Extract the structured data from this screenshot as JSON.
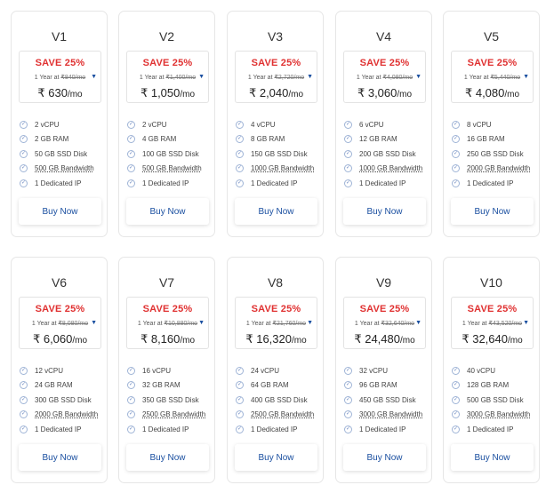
{
  "accent_color": "#e03131",
  "button_color": "#1a4fa0",
  "plans": [
    {
      "name": "V1",
      "save": "SAVE 25%",
      "term": "1 Year at",
      "old_price": "₹840/mo",
      "price": "₹ 630",
      "per": "/mo",
      "features": [
        "2 vCPU",
        "2 GB RAM",
        "50 GB SSD Disk",
        "500 GB Bandwidth",
        "1 Dedicated IP"
      ],
      "buy": "Buy Now"
    },
    {
      "name": "V2",
      "save": "SAVE 25%",
      "term": "1 Year at",
      "old_price": "₹1,400/mo",
      "price": "₹ 1,050",
      "per": "/mo",
      "features": [
        "2 vCPU",
        "4 GB RAM",
        "100 GB SSD Disk",
        "500 GB Bandwidth",
        "1 Dedicated IP"
      ],
      "buy": "Buy Now"
    },
    {
      "name": "V3",
      "save": "SAVE 25%",
      "term": "1 Year at",
      "old_price": "₹2,720/mo",
      "price": "₹ 2,040",
      "per": "/mo",
      "features": [
        "4 vCPU",
        "8 GB RAM",
        "150 GB SSD Disk",
        "1000 GB Bandwidth",
        "1 Dedicated IP"
      ],
      "buy": "Buy Now"
    },
    {
      "name": "V4",
      "save": "SAVE 25%",
      "term": "1 Year at",
      "old_price": "₹4,080/mo",
      "price": "₹ 3,060",
      "per": "/mo",
      "features": [
        "6 vCPU",
        "12 GB RAM",
        "200 GB SSD Disk",
        "1000 GB Bandwidth",
        "1 Dedicated IP"
      ],
      "buy": "Buy Now"
    },
    {
      "name": "V5",
      "save": "SAVE 25%",
      "term": "1 Year at",
      "old_price": "₹5,440/mo",
      "price": "₹ 4,080",
      "per": "/mo",
      "features": [
        "8 vCPU",
        "16 GB RAM",
        "250 GB SSD Disk",
        "2000 GB Bandwidth",
        "1 Dedicated IP"
      ],
      "buy": "Buy Now"
    },
    {
      "name": "V6",
      "save": "SAVE 25%",
      "term": "1 Year at",
      "old_price": "₹8,080/mo",
      "price": "₹ 6,060",
      "per": "/mo",
      "features": [
        "12 vCPU",
        "24 GB RAM",
        "300 GB SSD Disk",
        "2000 GB Bandwidth",
        "1 Dedicated IP"
      ],
      "buy": "Buy Now"
    },
    {
      "name": "V7",
      "save": "SAVE 25%",
      "term": "1 Year at",
      "old_price": "₹10,880/mo",
      "price": "₹ 8,160",
      "per": "/mo",
      "features": [
        "16 vCPU",
        "32 GB RAM",
        "350 GB SSD Disk",
        "2500 GB Bandwidth",
        "1 Dedicated IP"
      ],
      "buy": "Buy Now"
    },
    {
      "name": "V8",
      "save": "SAVE 25%",
      "term": "1 Year at",
      "old_price": "₹21,760/mo",
      "price": "₹ 16,320",
      "per": "/mo",
      "features": [
        "24 vCPU",
        "64 GB RAM",
        "400 GB SSD Disk",
        "2500 GB Bandwidth",
        "1 Dedicated IP"
      ],
      "buy": "Buy Now"
    },
    {
      "name": "V9",
      "save": "SAVE 25%",
      "term": "1 Year at",
      "old_price": "₹32,640/mo",
      "price": "₹ 24,480",
      "per": "/mo",
      "features": [
        "32 vCPU",
        "96 GB RAM",
        "450 GB SSD Disk",
        "3000 GB Bandwidth",
        "1 Dedicated IP"
      ],
      "buy": "Buy Now"
    },
    {
      "name": "V10",
      "save": "SAVE 25%",
      "term": "1 Year at",
      "old_price": "₹43,520/mo",
      "price": "₹ 32,640",
      "per": "/mo",
      "features": [
        "40 vCPU",
        "128 GB RAM",
        "500 GB SSD Disk",
        "3000 GB Bandwidth",
        "1 Dedicated IP"
      ],
      "buy": "Buy Now"
    }
  ]
}
